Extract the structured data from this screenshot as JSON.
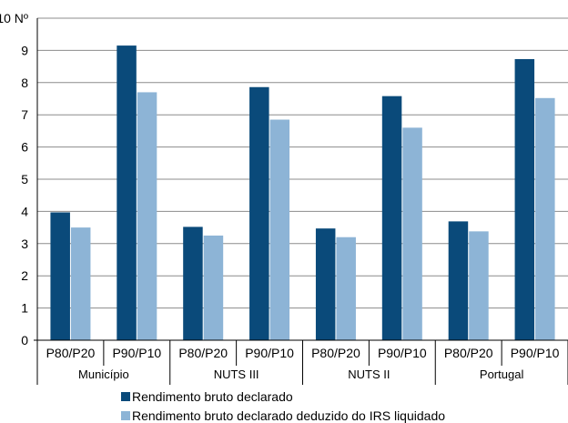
{
  "chart_data": {
    "type": "bar",
    "y_unit_label": "Nº",
    "ylim": [
      0,
      10
    ],
    "yticks": [
      0,
      1,
      2,
      3,
      4,
      5,
      6,
      7,
      8,
      9,
      10
    ],
    "grid": true,
    "legend_position": "bottom",
    "groups": [
      "Município",
      "NUTS III",
      "NUTS II",
      "Portugal"
    ],
    "categories": [
      "P80/P20",
      "P90/P10",
      "P80/P20",
      "P90/P10",
      "P80/P20",
      "P90/P10",
      "P80/P20",
      "P90/P10"
    ],
    "series": [
      {
        "name": "Rendimento bruto declarado",
        "color": "#0a4a7a",
        "values": [
          3.97,
          9.15,
          3.52,
          7.86,
          3.47,
          7.58,
          3.69,
          8.73
        ]
      },
      {
        "name": "Rendimento bruto declarado deduzido do IRS liquidado",
        "color": "#8db4d6",
        "values": [
          3.5,
          7.7,
          3.25,
          6.85,
          3.2,
          6.6,
          3.38,
          7.52
        ]
      }
    ]
  }
}
